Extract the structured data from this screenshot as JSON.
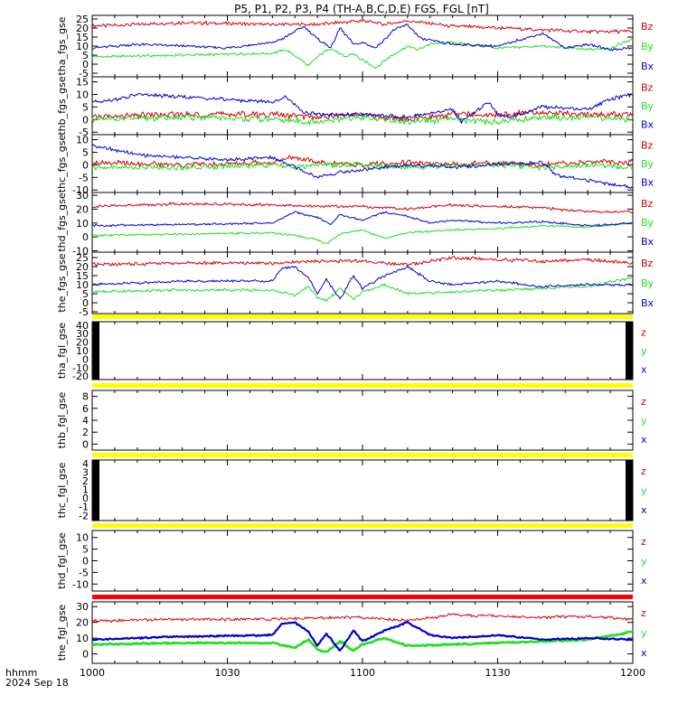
{
  "chart_data": {
    "type": "line",
    "title": "P5, P1, P2, P3, P4 (TH-A,B,C,D,E) FGS, FGL [nT]",
    "x_axis": {
      "label_line1": "hhmm",
      "label_line2": "2024 Sep 18",
      "tick_labels": [
        "1000",
        "1030",
        "1100",
        "1130",
        "1200"
      ],
      "range_minutes": [
        0,
        120
      ]
    },
    "colors": {
      "z": "#d40000",
      "y": "#22dd22",
      "x": "#0000cc",
      "bar_yellow": "#ffff00",
      "bar_red": "#ff0000"
    },
    "panels": [
      {
        "ylabel": "tha_fgs_gse",
        "ylim": [
          -7,
          27
        ],
        "ticks": [
          -5,
          0,
          5,
          10,
          15,
          20,
          25
        ],
        "legend": [
          "Bz",
          "By",
          "Bx"
        ],
        "series": [
          {
            "name": "Bz",
            "color": "z",
            "lw": 1,
            "noise": 0.8,
            "t": [
              0,
              20,
              40,
              45,
              50,
              55,
              60,
              65,
              70,
              80,
              90,
              110,
              120
            ],
            "v": [
              21,
              23,
              22,
              22,
              22,
              23,
              24,
              22,
              24,
              21,
              20,
              18,
              18
            ]
          },
          {
            "name": "By",
            "color": "y",
            "lw": 1,
            "noise": 0.6,
            "t": [
              0,
              20,
              40,
              43,
              46,
              48,
              50,
              53,
              56,
              58,
              60,
              63,
              66,
              70,
              72,
              75,
              80,
              90,
              100,
              110,
              115,
              120
            ],
            "v": [
              4,
              5,
              6,
              8,
              3,
              -1,
              4,
              9,
              4,
              6,
              2,
              -2,
              4,
              10,
              8,
              11,
              12,
              9,
              10,
              8,
              9,
              14
            ]
          },
          {
            "name": "Bx",
            "color": "x",
            "lw": 1,
            "noise": 0.6,
            "t": [
              0,
              10,
              20,
              30,
              40,
              43,
              47,
              50,
              53,
              55,
              58,
              60,
              63,
              67,
              70,
              73,
              80,
              90,
              100,
              105,
              110,
              115,
              120
            ],
            "v": [
              9,
              11,
              10,
              9,
              12,
              15,
              21,
              14,
              9,
              20,
              11,
              12,
              9,
              19,
              22,
              14,
              11,
              10,
              17,
              9,
              11,
              8,
              9
            ]
          }
        ]
      },
      {
        "ylabel": "thb_fgs_gse",
        "ylim": [
          -6,
          17
        ],
        "ticks": [
          -5,
          0,
          5,
          10,
          15
        ],
        "legend": [
          "Bz",
          "By",
          "Bx"
        ],
        "series": [
          {
            "name": "Bz",
            "color": "z",
            "lw": 1,
            "noise": 1.0,
            "t": [
              0,
              20,
              40,
              50,
              60,
              70,
              80,
              90,
              100,
              110,
              120
            ],
            "v": [
              1,
              2,
              2,
              1,
              2,
              0,
              2,
              2,
              3,
              2,
              2
            ]
          },
          {
            "name": "By",
            "color": "y",
            "lw": 1,
            "noise": 1.0,
            "t": [
              0,
              20,
              40,
              50,
              60,
              70,
              80,
              90,
              100,
              110,
              120
            ],
            "v": [
              0,
              1,
              0,
              -1,
              1,
              -1,
              0,
              -1,
              1,
              1,
              0
            ]
          },
          {
            "name": "Bx",
            "color": "x",
            "lw": 1,
            "noise": 0.6,
            "t": [
              0,
              5,
              10,
              20,
              30,
              40,
              43,
              45,
              47,
              50,
              60,
              70,
              80,
              82,
              85,
              88,
              90,
              93,
              100,
              110,
              115,
              120
            ],
            "v": [
              7,
              8,
              10,
              9,
              8,
              7,
              9,
              6,
              3,
              2,
              2,
              1,
              4,
              -1,
              3,
              7,
              2,
              1,
              5,
              4,
              8,
              10
            ]
          }
        ]
      },
      {
        "ylabel": "thc_fgs_gse",
        "ylim": [
          -11,
          12
        ],
        "ticks": [
          -10,
          -5,
          0,
          5,
          10
        ],
        "legend": [
          "Bz",
          "By",
          "Bx"
        ],
        "series": [
          {
            "name": "Bz",
            "color": "z",
            "lw": 1,
            "noise": 0.9,
            "t": [
              0,
              20,
              40,
              45,
              50,
              60,
              70,
              80,
              90,
              100,
              110,
              120
            ],
            "v": [
              1,
              0,
              1,
              3,
              1,
              0,
              1,
              0,
              1,
              0,
              1,
              1
            ]
          },
          {
            "name": "By",
            "color": "y",
            "lw": 1,
            "noise": 0.9,
            "t": [
              0,
              20,
              40,
              45,
              50,
              60,
              70,
              80,
              90,
              100,
              110,
              120
            ],
            "v": [
              -1,
              -1,
              0,
              -1,
              0,
              0,
              -1,
              0,
              0,
              -1,
              0,
              -1
            ]
          },
          {
            "name": "Bx",
            "color": "x",
            "lw": 1,
            "noise": 0.6,
            "t": [
              0,
              5,
              10,
              20,
              30,
              40,
              45,
              50,
              55,
              60,
              70,
              80,
              90,
              100,
              103,
              110,
              120
            ],
            "v": [
              8,
              6,
              4,
              3,
              2,
              3,
              -1,
              -5,
              -3,
              -2,
              0,
              -1,
              0,
              1,
              -4,
              -6,
              -9
            ]
          }
        ]
      },
      {
        "ylabel": "thd_fgs_gse",
        "ylim": [
          -11,
          32
        ],
        "ticks": [
          -10,
          0,
          10,
          20,
          30
        ],
        "legend": [
          "Bz",
          "By",
          "Bx"
        ],
        "series": [
          {
            "name": "Bz",
            "color": "z",
            "lw": 1,
            "noise": 0.8,
            "t": [
              0,
              20,
              40,
              50,
              60,
              70,
              80,
              90,
              100,
              110,
              120
            ],
            "v": [
              22,
              24,
              23,
              22,
              22,
              20,
              23,
              22,
              21,
              18,
              18
            ]
          },
          {
            "name": "By",
            "color": "y",
            "lw": 1,
            "noise": 0.6,
            "t": [
              0,
              20,
              40,
              45,
              50,
              52,
              55,
              60,
              65,
              70,
              80,
              90,
              100,
              110,
              120
            ],
            "v": [
              1,
              2,
              3,
              1,
              -2,
              -5,
              2,
              5,
              -1,
              3,
              5,
              6,
              8,
              7,
              10
            ]
          },
          {
            "name": "Bx",
            "color": "x",
            "lw": 1,
            "noise": 0.6,
            "t": [
              0,
              20,
              40,
              45,
              50,
              53,
              55,
              60,
              65,
              70,
              75,
              80,
              90,
              100,
              110,
              120
            ],
            "v": [
              8,
              9,
              10,
              18,
              14,
              9,
              16,
              12,
              18,
              15,
              10,
              12,
              10,
              11,
              8,
              10
            ]
          }
        ]
      },
      {
        "ylabel": "the_fgs_gse",
        "ylim": [
          -6,
          28
        ],
        "ticks": [
          -5,
          0,
          5,
          10,
          15,
          20,
          25
        ],
        "legend": [
          "Bz",
          "By",
          "Bx"
        ],
        "series": [
          {
            "name": "Bz",
            "color": "z",
            "lw": 1,
            "noise": 0.8,
            "t": [
              0,
              20,
              40,
              50,
              60,
              70,
              80,
              90,
              100,
              110,
              120
            ],
            "v": [
              21,
              22,
              22,
              23,
              23,
              21,
              25,
              24,
              23,
              24,
              22
            ]
          },
          {
            "name": "By",
            "color": "y",
            "lw": 1,
            "noise": 0.6,
            "t": [
              0,
              20,
              40,
              45,
              48,
              50,
              52,
              55,
              58,
              60,
              65,
              70,
              80,
              90,
              100,
              110,
              120
            ],
            "v": [
              6,
              7,
              7,
              4,
              9,
              3,
              1,
              8,
              2,
              6,
              10,
              5,
              6,
              7,
              8,
              9,
              14
            ]
          },
          {
            "name": "Bx",
            "color": "x",
            "lw": 1,
            "noise": 0.6,
            "t": [
              0,
              20,
              40,
              42,
              45,
              48,
              50,
              52,
              55,
              58,
              60,
              65,
              70,
              75,
              80,
              90,
              100,
              110,
              120
            ],
            "v": [
              10,
              12,
              12,
              19,
              20,
              14,
              5,
              13,
              2,
              15,
              8,
              15,
              20,
              12,
              10,
              12,
              9,
              10,
              10
            ]
          }
        ]
      },
      {
        "ylabel": "tha_fgl_gse",
        "ylim": [
          -24,
          44
        ],
        "ticks": [
          -20,
          -10,
          0,
          10,
          20,
          30,
          40
        ],
        "legend": [
          "z",
          "y",
          "x"
        ],
        "bar": "bar_yellow",
        "edge_fill": true,
        "series": []
      },
      {
        "ylabel": "thb_fgl_gse",
        "ylim": [
          -1,
          9
        ],
        "ticks": [
          0,
          2,
          4,
          6,
          8
        ],
        "legend": [
          "z",
          "y",
          "x"
        ],
        "bar": "bar_yellow",
        "edge_fill": false,
        "series": []
      },
      {
        "ylabel": "thc_fgl_gse",
        "ylim": [
          -2.6,
          4.4
        ],
        "ticks": [
          -2,
          -1,
          0,
          1,
          2,
          3,
          4
        ],
        "legend": [
          "z",
          "y",
          "x"
        ],
        "bar": "bar_yellow",
        "edge_fill": true,
        "series": []
      },
      {
        "ylabel": "thd_fgl_gse",
        "ylim": [
          -13,
          13
        ],
        "ticks": [
          -10,
          -5,
          0,
          5,
          10
        ],
        "legend": [
          "z",
          "y",
          "x"
        ],
        "bar": "bar_yellow",
        "edge_fill": false,
        "series": []
      },
      {
        "ylabel": "the_fgl_gse",
        "ylim": [
          -6,
          33
        ],
        "ticks": [
          0,
          10,
          20,
          30
        ],
        "legend": [
          "z",
          "y",
          "x"
        ],
        "bar": "bar_red",
        "edge_fill": false,
        "series": [
          {
            "name": "z",
            "color": "z",
            "lw": 1,
            "noise": 0.8,
            "t": [
              0,
              20,
              40,
              50,
              60,
              70,
              80,
              90,
              100,
              110,
              120
            ],
            "v": [
              21,
              22,
              22,
              23,
              23,
              21,
              25,
              24,
              23,
              24,
              22
            ]
          },
          {
            "name": "y",
            "color": "y",
            "lw": 2.6,
            "noise": 0.4,
            "t": [
              0,
              20,
              40,
              45,
              48,
              50,
              52,
              55,
              58,
              60,
              65,
              70,
              80,
              90,
              100,
              110,
              120
            ],
            "v": [
              6,
              7,
              7,
              4,
              9,
              3,
              1,
              8,
              2,
              6,
              10,
              5,
              6,
              7,
              8,
              9,
              14
            ]
          },
          {
            "name": "x",
            "color": "x",
            "lw": 2.2,
            "noise": 0.4,
            "t": [
              0,
              20,
              40,
              42,
              45,
              48,
              50,
              52,
              55,
              58,
              60,
              65,
              70,
              75,
              80,
              90,
              100,
              110,
              120
            ],
            "v": [
              9,
              11,
              12,
              19,
              20,
              14,
              5,
              13,
              2,
              15,
              8,
              15,
              20,
              12,
              10,
              12,
              9,
              10,
              9
            ]
          }
        ]
      }
    ]
  }
}
